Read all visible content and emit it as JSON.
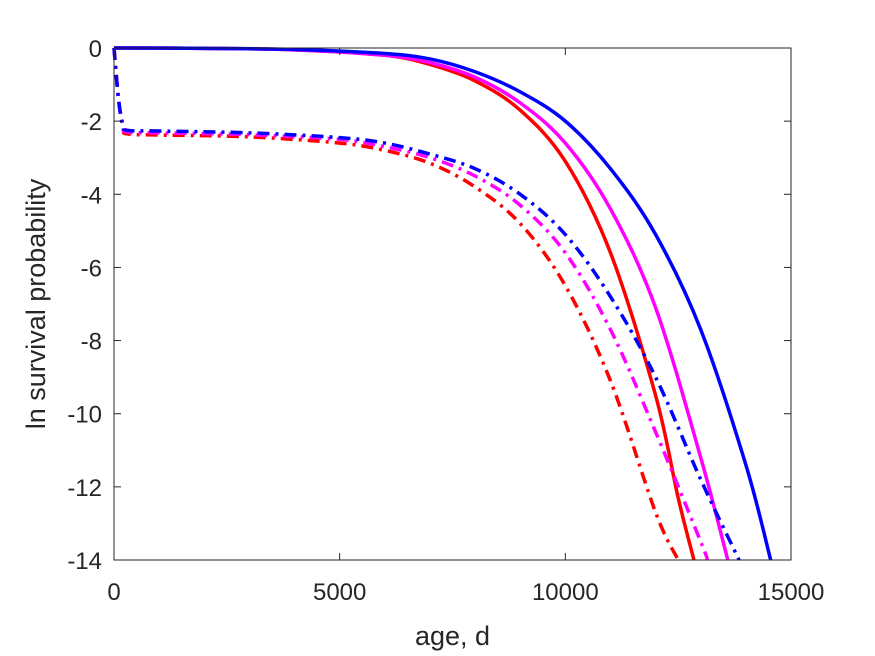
{
  "chart_data": {
    "type": "line",
    "title": "",
    "xlabel": "age, d",
    "ylabel": "ln survival probability",
    "xlim": [
      0,
      15000
    ],
    "ylim": [
      -14,
      0
    ],
    "xticks": [
      0,
      5000,
      10000,
      15000
    ],
    "yticks": [
      0,
      -2,
      -4,
      -6,
      -8,
      -10,
      -12,
      -14
    ],
    "grid": false,
    "legend": "none",
    "series": [
      {
        "color": "#ff0000",
        "style": "solid",
        "x": [
          0,
          2000,
          4000,
          6000,
          7000,
          8000,
          9000,
          10000,
          11000,
          12000,
          12500,
          12850
        ],
        "y": [
          0,
          -0.01,
          -0.05,
          -0.2,
          -0.45,
          -0.9,
          -1.7,
          -3.1,
          -5.6,
          -9.5,
          -12.3,
          -14
        ]
      },
      {
        "color": "#ff00ff",
        "style": "solid",
        "x": [
          0,
          2000,
          4000,
          6000,
          7000,
          8000,
          9000,
          10000,
          11000,
          12000,
          13000,
          13600
        ],
        "y": [
          0,
          -0.01,
          -0.05,
          -0.2,
          -0.4,
          -0.8,
          -1.5,
          -2.6,
          -4.4,
          -7.1,
          -11.2,
          -14
        ]
      },
      {
        "color": "#0000ff",
        "style": "solid",
        "x": [
          0,
          2000,
          4000,
          6000,
          7000,
          8000,
          9000,
          10000,
          11000,
          12000,
          13000,
          14000,
          14550
        ],
        "y": [
          0,
          -0.01,
          -0.04,
          -0.15,
          -0.3,
          -0.65,
          -1.2,
          -2.0,
          -3.3,
          -5.1,
          -7.7,
          -11.4,
          -14
        ]
      },
      {
        "color": "#ff0000",
        "style": "dashdot",
        "x": [
          0,
          100,
          200,
          300,
          1000,
          3000,
          5000,
          6000,
          7000,
          8000,
          9000,
          10000,
          11000,
          12000,
          12500
        ],
        "y": [
          0,
          -1.4,
          -2.2,
          -2.35,
          -2.38,
          -2.43,
          -2.6,
          -2.8,
          -3.15,
          -3.8,
          -4.8,
          -6.5,
          -9.1,
          -12.7,
          -14
        ]
      },
      {
        "color": "#ff00ff",
        "style": "dashdot",
        "x": [
          0,
          100,
          200,
          300,
          1000,
          3000,
          5000,
          6000,
          7000,
          8000,
          9000,
          10000,
          11000,
          12000,
          13000,
          13150
        ],
        "y": [
          0,
          -1.4,
          -2.15,
          -2.3,
          -2.32,
          -2.37,
          -2.5,
          -2.7,
          -3.0,
          -3.5,
          -4.3,
          -5.6,
          -7.7,
          -10.5,
          -13.5,
          -14
        ]
      },
      {
        "color": "#0000ff",
        "style": "dashdot",
        "x": [
          0,
          100,
          200,
          300,
          1000,
          3000,
          5000,
          6000,
          7000,
          8000,
          9000,
          10000,
          11000,
          12000,
          13000,
          13850
        ],
        "y": [
          0,
          -1.4,
          -2.1,
          -2.25,
          -2.27,
          -2.32,
          -2.45,
          -2.6,
          -2.9,
          -3.3,
          -4.0,
          -5.1,
          -6.8,
          -9.0,
          -11.8,
          -14
        ]
      }
    ]
  }
}
